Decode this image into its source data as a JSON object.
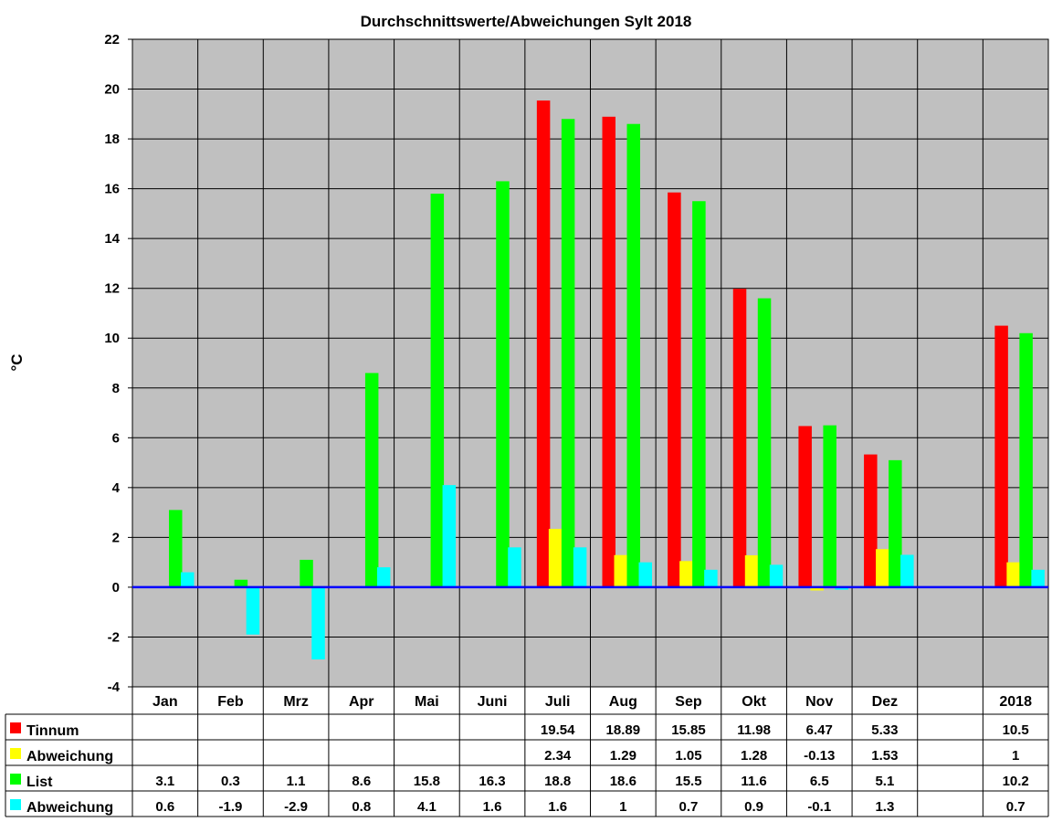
{
  "chart_data": {
    "type": "bar",
    "title": "Durchschnittswerte/Abweichungen Sylt 2018",
    "ylabel": "°C",
    "xlabel": "",
    "ylim": [
      -4,
      22
    ],
    "yticks": [
      -4,
      -2,
      0,
      2,
      4,
      6,
      8,
      10,
      12,
      14,
      16,
      18,
      20,
      22
    ],
    "grid": true,
    "legend_position": "data-table-left",
    "plot_background": "#C0C0C0",
    "zero_line_color": "#0000FF",
    "categories": [
      "Jan",
      "Feb",
      "Mrz",
      "Apr",
      "Mai",
      "Juni",
      "Juli",
      "Aug",
      "Sep",
      "Okt",
      "Nov",
      "Dez",
      "",
      "2018"
    ],
    "series": [
      {
        "name": "Tinnum",
        "color": "#FF0000",
        "values": [
          null,
          null,
          null,
          null,
          null,
          null,
          19.54,
          18.89,
          15.85,
          11.98,
          6.47,
          5.33,
          null,
          10.5
        ],
        "labels": [
          "",
          "",
          "",
          "",
          "",
          "",
          "19.54",
          "18.89",
          "15.85",
          "11.98",
          "6.47",
          "5.33",
          "",
          "10.5"
        ]
      },
      {
        "name": "Abweichung",
        "color": "#FFFF00",
        "values": [
          null,
          null,
          null,
          null,
          null,
          null,
          2.34,
          1.29,
          1.05,
          1.28,
          -0.13,
          1.53,
          null,
          1
        ],
        "labels": [
          "",
          "",
          "",
          "",
          "",
          "",
          "2.34",
          "1.29",
          "1.05",
          "1.28",
          "-0.13",
          "1.53",
          "",
          "1"
        ]
      },
      {
        "name": "List",
        "color": "#00FF00",
        "values": [
          3.1,
          0.3,
          1.1,
          8.6,
          15.8,
          16.3,
          18.8,
          18.6,
          15.5,
          11.6,
          6.5,
          5.1,
          null,
          10.2
        ],
        "labels": [
          "3.1",
          "0.3",
          "1.1",
          "8.6",
          "15.8",
          "16.3",
          "18.8",
          "18.6",
          "15.5",
          "11.6",
          "6.5",
          "5.1",
          "",
          "10.2"
        ]
      },
      {
        "name": "Abweichung",
        "color": "#00FFFF",
        "values": [
          0.6,
          -1.9,
          -2.9,
          0.8,
          4.1,
          1.6,
          1.6,
          1,
          0.7,
          0.9,
          -0.1,
          1.3,
          null,
          0.7
        ],
        "labels": [
          "0.6",
          "-1.9",
          "-2.9",
          "0.8",
          "4.1",
          "1.6",
          "1.6",
          "1",
          "0.7",
          "0.9",
          "-0.1",
          "1.3",
          "",
          "0.7"
        ]
      }
    ]
  }
}
